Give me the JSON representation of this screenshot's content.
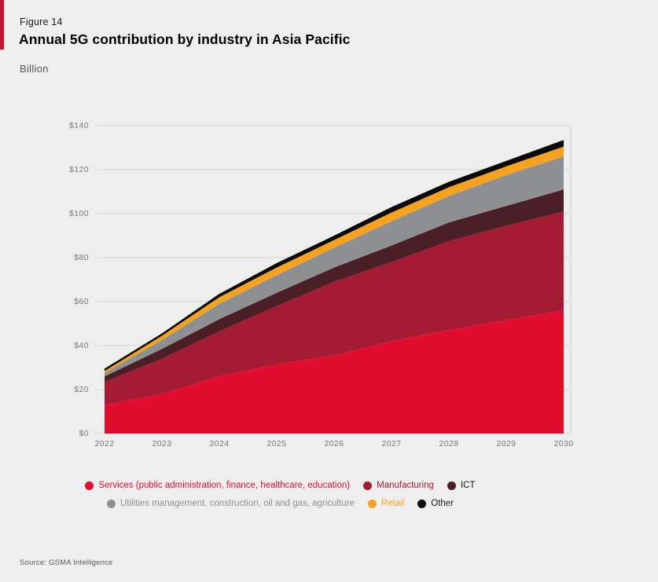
{
  "page": {
    "figure_label": "Figure 14",
    "title": "Annual 5G contribution by industry in Asia Pacific",
    "unit_label": "Billion",
    "source": "Source: GSMA Intelligence",
    "accent_color": "#c8102e",
    "background_color": "#efeeef"
  },
  "chart_data": {
    "type": "area",
    "stacked": true,
    "title": "Annual 5G contribution by industry in Asia Pacific",
    "ylabel": "Billion ($)",
    "x": [
      2022,
      2023,
      2024,
      2025,
      2026,
      2027,
      2028,
      2029,
      2030
    ],
    "ylim": [
      0,
      140
    ],
    "ytick_interval": 20,
    "yticks_labels": [
      "$0",
      "$20",
      "$40",
      "$60",
      "$80",
      "$100",
      "$120",
      "$140"
    ],
    "grid": "horizontal",
    "legend_position": "bottom",
    "series": [
      {
        "name": "Services (public administration, finance, healthcare, education)",
        "color": "#e10d2e",
        "values": [
          13,
          18,
          26,
          31.5,
          35.5,
          42,
          47,
          51.5,
          56
        ]
      },
      {
        "name": "Manufacturing",
        "color": "#a31c33",
        "values": [
          10.5,
          16,
          20.5,
          26.5,
          33.5,
          36,
          40.5,
          43,
          45
        ]
      },
      {
        "name": "ICT",
        "color": "#4a1f26",
        "values": [
          2.5,
          4.5,
          5.5,
          6,
          6.5,
          7.5,
          8.5,
          9,
          10
        ]
      },
      {
        "name": "Utilities management, construction, oil and gas, agriculture",
        "color": "#8e8f92",
        "values": [
          1.5,
          4,
          7,
          8,
          9,
          11,
          12,
          14,
          15
        ]
      },
      {
        "name": "Retail",
        "color": "#f6a221",
        "values": [
          1,
          2,
          3,
          3.5,
          3.5,
          4,
          4,
          4,
          4.5
        ]
      },
      {
        "name": "Other",
        "color": "#0a0a0a",
        "values": [
          0.5,
          0.5,
          1,
          1.5,
          1.5,
          2,
          2,
          2,
          2.5
        ]
      }
    ],
    "top_line_color": "#0a0a0a",
    "gridline_color": "#d9d8d8"
  },
  "legend": {
    "rows": [
      {
        "items": [
          {
            "label": "Services (public administration, finance, healthcare, education)",
            "dot_color": "#e10d2e",
            "label_color": "#e10d2e"
          },
          {
            "label": "Manufacturing",
            "dot_color": "#a31c33",
            "label_color": "#a31c33"
          },
          {
            "label": "ICT",
            "dot_color": "#4a1f26",
            "label_color": "#1a1a1a"
          }
        ]
      },
      {
        "items": [
          {
            "label": "Utilities management, construction, oil and gas, agriculture",
            "dot_color": "#8e8f92",
            "label_color": "#8e8f92"
          },
          {
            "label": "Retail",
            "dot_color": "#f6a221",
            "label_color": "#f6a221"
          },
          {
            "label": "Other",
            "dot_color": "#0a0a0a",
            "label_color": "#1a1a1a"
          }
        ]
      }
    ]
  }
}
